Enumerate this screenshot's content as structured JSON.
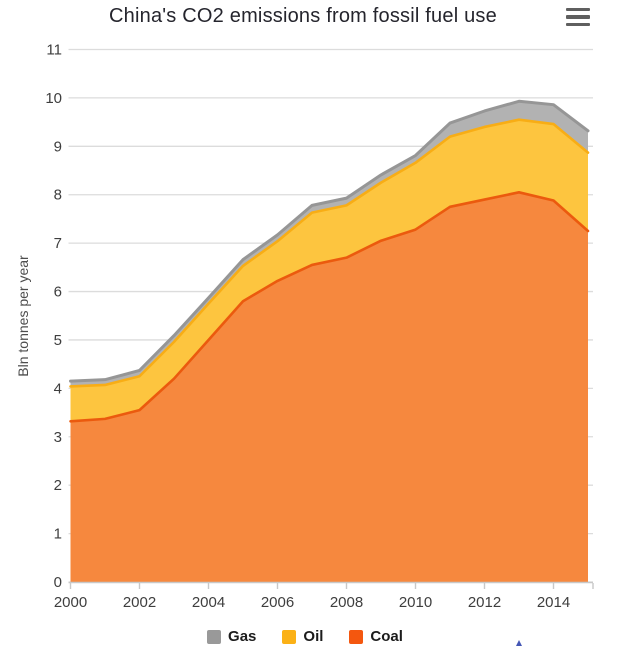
{
  "header": {
    "title": "China's CO2 emissions from fossil fuel use",
    "menu_icon": "hamburger-icon"
  },
  "chart_data": {
    "type": "area",
    "stacked": true,
    "title": "China's CO2 emissions from fossil fuel use",
    "xlabel": "",
    "ylabel": "Bln tonnes per year",
    "ylim": [
      0,
      11
    ],
    "y_ticks": [
      "0",
      "1",
      "2",
      "3",
      "4",
      "5",
      "6",
      "7",
      "8",
      "9",
      "10",
      "11"
    ],
    "x_tick_labels": [
      "2000",
      "2002",
      "2004",
      "2006",
      "2008",
      "2010",
      "2012",
      "2014"
    ],
    "x_tick_years": [
      2000,
      2002,
      2004,
      2006,
      2008,
      2010,
      2012,
      2014
    ],
    "x_range": [
      2000,
      2015
    ],
    "x": [
      2000,
      2001,
      2002,
      2003,
      2004,
      2005,
      2006,
      2007,
      2008,
      2009,
      2010,
      2011,
      2012,
      2013,
      2014,
      2015
    ],
    "grid": true,
    "legend_position": "bottom",
    "series": [
      {
        "name": "Coal",
        "fill": "#F6883E",
        "line": "#EB5A0E",
        "values": [
          3.32,
          3.37,
          3.55,
          4.2,
          5.0,
          5.8,
          6.22,
          6.55,
          6.7,
          7.05,
          7.28,
          7.75,
          7.9,
          8.05,
          7.88,
          7.25
        ]
      },
      {
        "name": "Oil",
        "fill": "#FDC53F",
        "line": "#F8AD15",
        "values": [
          0.72,
          0.7,
          0.7,
          0.76,
          0.75,
          0.73,
          0.82,
          1.08,
          1.08,
          1.2,
          1.38,
          1.45,
          1.5,
          1.5,
          1.58,
          1.62
        ]
      },
      {
        "name": "Gas",
        "fill": "#B2B2B2",
        "line": "#969696",
        "values": [
          0.11,
          0.11,
          0.12,
          0.13,
          0.12,
          0.13,
          0.13,
          0.15,
          0.15,
          0.16,
          0.15,
          0.28,
          0.33,
          0.38,
          0.4,
          0.45
        ]
      }
    ],
    "colors": {
      "grid": "#DCDCDC",
      "axis_line": "#C8C8C8",
      "tick_label": "#3e3e3e",
      "title": "#25252d"
    }
  },
  "legend": {
    "items": [
      {
        "label": "Gas",
        "color": "#999999"
      },
      {
        "label": "Oil",
        "color": "#FBB116"
      },
      {
        "label": "Coal",
        "color": "#F4570F"
      }
    ]
  },
  "misc": {
    "pointer_mark_icon": "small-blue-triangle",
    "pointer_mark_color": "#4456b5"
  }
}
